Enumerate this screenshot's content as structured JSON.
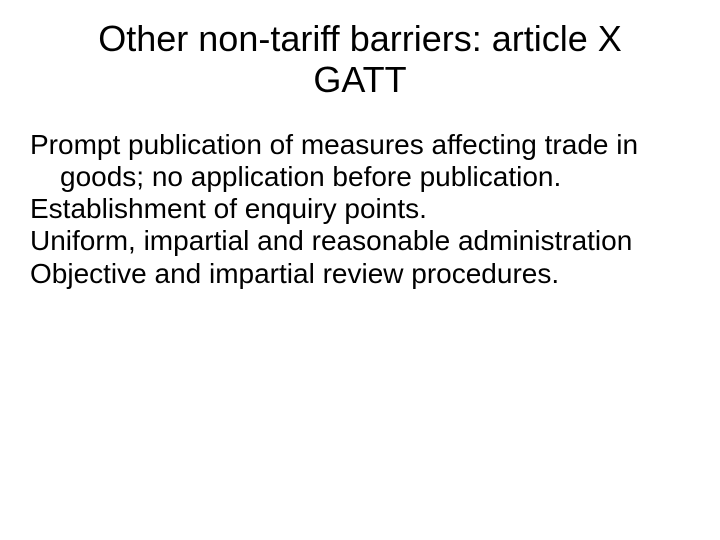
{
  "slide": {
    "title": "Other non-tariff barriers: article X GATT",
    "title_fontsize": 36,
    "title_color": "#000000",
    "body_fontsize": 28,
    "body_color": "#000000",
    "background_color": "#ffffff",
    "paragraphs": [
      "Prompt publication of measures affecting trade in goods; no application before publication.",
      "Establishment of enquiry points.",
      "Uniform, impartial and reasonable administration",
      "Objective and impartial review procedures."
    ]
  }
}
